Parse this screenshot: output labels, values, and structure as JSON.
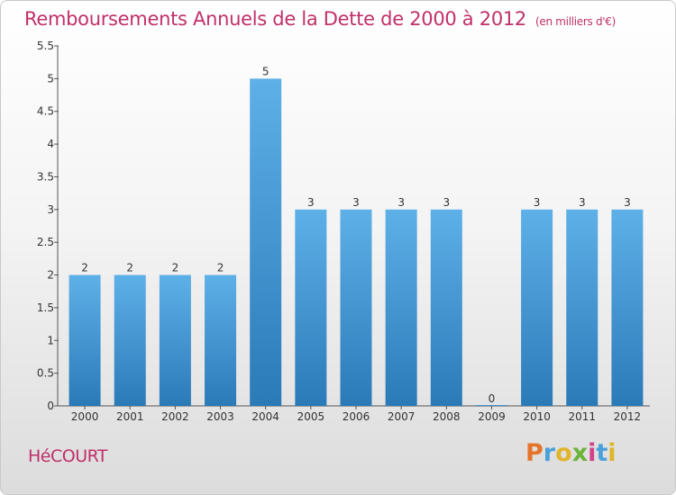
{
  "title": "Remboursements Annuels de la Dette de 2000 à 2012",
  "unit": "(en milliers d'€)",
  "commune": "HéCOURT",
  "logo": {
    "p": "P",
    "r": "r",
    "o": "o",
    "x": "x",
    "i": "i",
    "t": "t",
    "i2": "i"
  },
  "colors": {
    "title": "#c0306a",
    "bar_light": "#5eb0e8",
    "bar_dark": "#2a7ab8"
  },
  "chart_data": {
    "type": "bar",
    "title": "Remboursements Annuels de la Dette de 2000 à 2012",
    "xlabel": "",
    "ylabel": "",
    "categories": [
      "2000",
      "2001",
      "2002",
      "2003",
      "2004",
      "2005",
      "2006",
      "2007",
      "2008",
      "2009",
      "2010",
      "2011",
      "2012"
    ],
    "values": [
      2,
      2,
      2,
      2,
      5,
      3,
      3,
      3,
      3,
      0,
      3,
      3,
      3
    ],
    "data_labels": [
      "2",
      "2",
      "2",
      "2",
      "5",
      "3",
      "3",
      "3",
      "3",
      "0",
      "3",
      "3",
      "3"
    ],
    "ylim": [
      0,
      5.5
    ],
    "yticks": [
      0,
      0.5,
      1,
      1.5,
      2,
      2.5,
      3,
      3.5,
      4,
      4.5,
      5,
      5.5
    ],
    "ytick_labels": [
      "0",
      "0.5",
      "1",
      "1.5",
      "2",
      "2.5",
      "3",
      "3.5",
      "4",
      "4.5",
      "5",
      "5.5"
    ],
    "grid": false
  }
}
